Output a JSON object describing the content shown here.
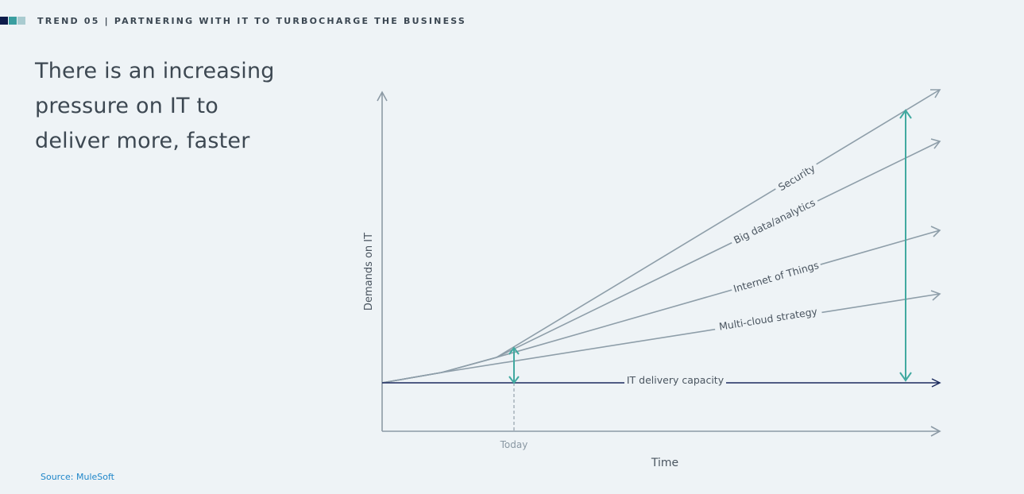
{
  "header": {
    "squares": [
      "#0d1b4a",
      "#3a9ea0",
      "#a9cbd0"
    ],
    "kicker": "TREND 05 | PARTNERING WITH IT TO TURBOCHARGE THE BUSINESS"
  },
  "headline": {
    "lines": [
      "There is an increasing",
      "pressure on IT to",
      "deliver more, faster"
    ]
  },
  "source": "Source: MuleSoft",
  "diagram": {
    "y_axis_label": "Demands on IT",
    "x_axis_label": "Time",
    "today_label": "Today",
    "capacity_label": "IT delivery capacity",
    "demand_lines": [
      {
        "label": "Security"
      },
      {
        "label": "Big data/analytics"
      },
      {
        "label": "Internet of Things"
      },
      {
        "label": "Multi-cloud strategy"
      }
    ],
    "colors": {
      "axis": "#8c9aa5",
      "demand": "#8e9ea9",
      "capacity": "#1b2a5e",
      "gap_arrow": "#41a9a0",
      "today_dash": "#9aa7b1"
    }
  }
}
